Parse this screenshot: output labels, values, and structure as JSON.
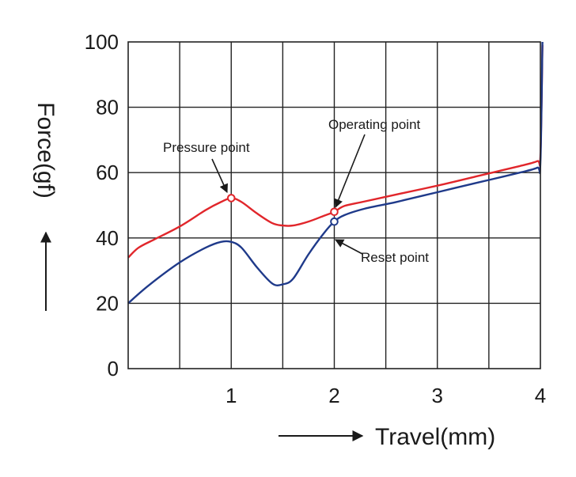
{
  "chart_data": {
    "type": "line",
    "title": "",
    "xlabel": "Travel(mm)",
    "ylabel": "Force(gf)",
    "xlim": [
      0,
      4
    ],
    "ylim": [
      0,
      100
    ],
    "x_ticks": [
      "1",
      "2",
      "3",
      "4"
    ],
    "y_ticks": [
      "0",
      "20",
      "40",
      "60",
      "80",
      "100"
    ],
    "grid": true,
    "series": [
      {
        "color": "#e1262b",
        "x": [
          0,
          0.1,
          0.25,
          0.5,
          0.75,
          0.9,
          1.0,
          1.1,
          1.25,
          1.4,
          1.5,
          1.6,
          1.75,
          1.9,
          2.0,
          2.1,
          2.3,
          2.6,
          3.0,
          3.4,
          3.8,
          3.97,
          4.0,
          4.02
        ],
        "y": [
          34,
          37,
          39.5,
          43.5,
          48.5,
          51,
          52.2,
          51,
          47.5,
          44.5,
          43.8,
          43.8,
          45,
          46.8,
          48,
          49.8,
          51.2,
          53.3,
          56,
          59,
          62,
          63.5,
          65,
          99
        ]
      },
      {
        "color": "#1f3a8a",
        "x": [
          0,
          0.2,
          0.5,
          0.75,
          0.9,
          1.0,
          1.1,
          1.25,
          1.4,
          1.5,
          1.6,
          1.75,
          1.9,
          2.0,
          2.1,
          2.3,
          2.6,
          3.0,
          3.4,
          3.8,
          3.97,
          4.0,
          4.02
        ],
        "y": [
          20,
          25.5,
          32.5,
          37,
          38.8,
          38.8,
          37,
          31,
          26,
          25.8,
          27.5,
          35,
          41.5,
          45,
          47,
          49,
          51,
          54,
          57,
          60,
          61.5,
          63,
          100
        ]
      }
    ],
    "annotations": [
      {
        "text": "Pressure point",
        "x": 1.0,
        "y": 52.2
      },
      {
        "text": "Operating point",
        "x": 2.0,
        "y": 48
      },
      {
        "text": "Reset point",
        "x": 2.0,
        "y": 45
      }
    ]
  }
}
